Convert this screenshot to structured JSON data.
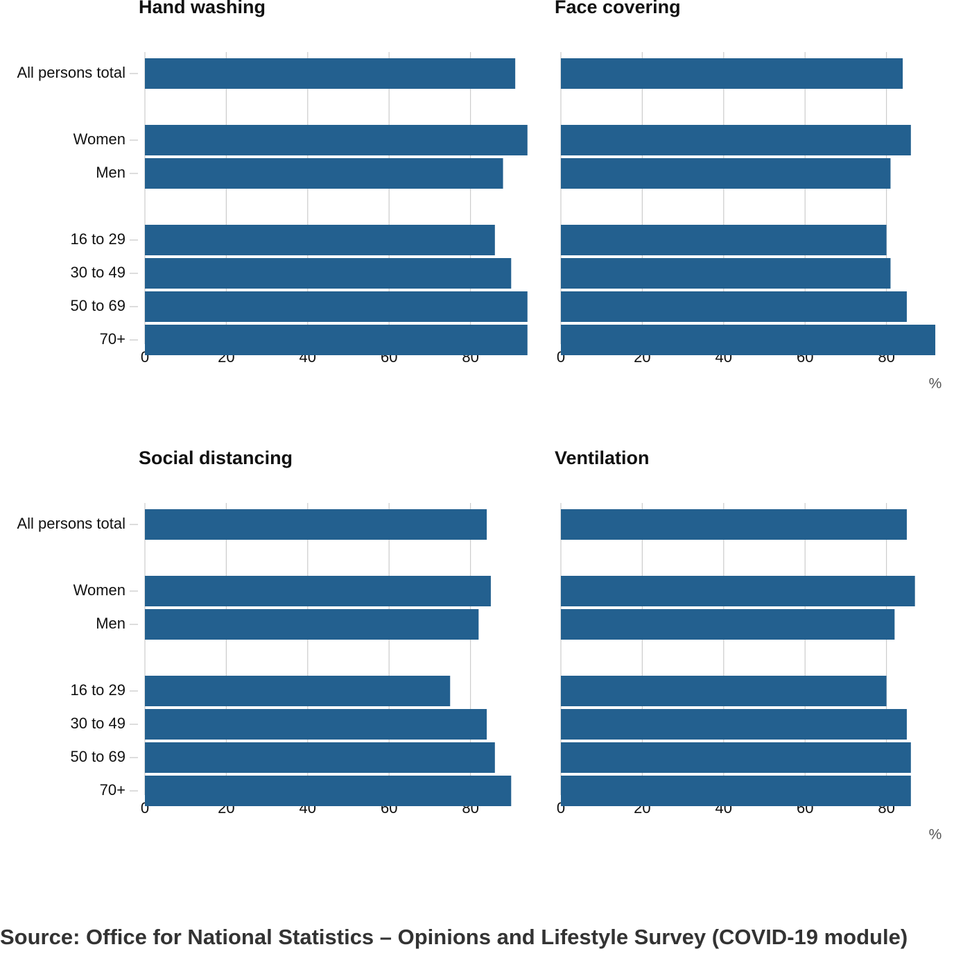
{
  "chart_data": [
    {
      "type": "bar",
      "title": "Hand washing",
      "categories": [
        "All persons total",
        null,
        "Women",
        "Men",
        null,
        "16 to 29",
        "30 to 49",
        "50 to 69",
        "70+"
      ],
      "values": [
        91,
        null,
        94,
        88,
        null,
        86,
        90,
        94,
        94
      ],
      "color": "#23608f",
      "xlim": [
        0,
        94
      ],
      "xticks": [
        0,
        20,
        40,
        60,
        80
      ],
      "grid": true
    },
    {
      "type": "bar",
      "title": "Face covering",
      "values": [
        84,
        null,
        86,
        81,
        null,
        80,
        81,
        85,
        92
      ],
      "color": "#23608f",
      "xlim": [
        0,
        92
      ],
      "xticks": [
        0,
        20,
        40,
        60,
        80
      ],
      "grid": true,
      "x_label": "%"
    },
    {
      "type": "bar",
      "title": "Social distancing",
      "categories": [
        "All persons total",
        null,
        "Women",
        "Men",
        null,
        "16 to 29",
        "30 to 49",
        "50 to 69",
        "70+"
      ],
      "values": [
        84,
        null,
        85,
        82,
        null,
        75,
        84,
        86,
        90
      ],
      "color": "#23608f",
      "xlim": [
        0,
        94
      ],
      "xticks": [
        0,
        20,
        40,
        60,
        80
      ],
      "grid": true
    },
    {
      "type": "bar",
      "title": "Ventilation",
      "values": [
        85,
        null,
        87,
        82,
        null,
        80,
        85,
        86,
        86
      ],
      "color": "#23608f",
      "xlim": [
        0,
        92
      ],
      "xticks": [
        0,
        20,
        40,
        60,
        80
      ],
      "grid": true,
      "x_label": "%"
    }
  ],
  "source": "Source: Office for National Statistics – Opinions and Lifestyle Survey (COVID-19 module)"
}
